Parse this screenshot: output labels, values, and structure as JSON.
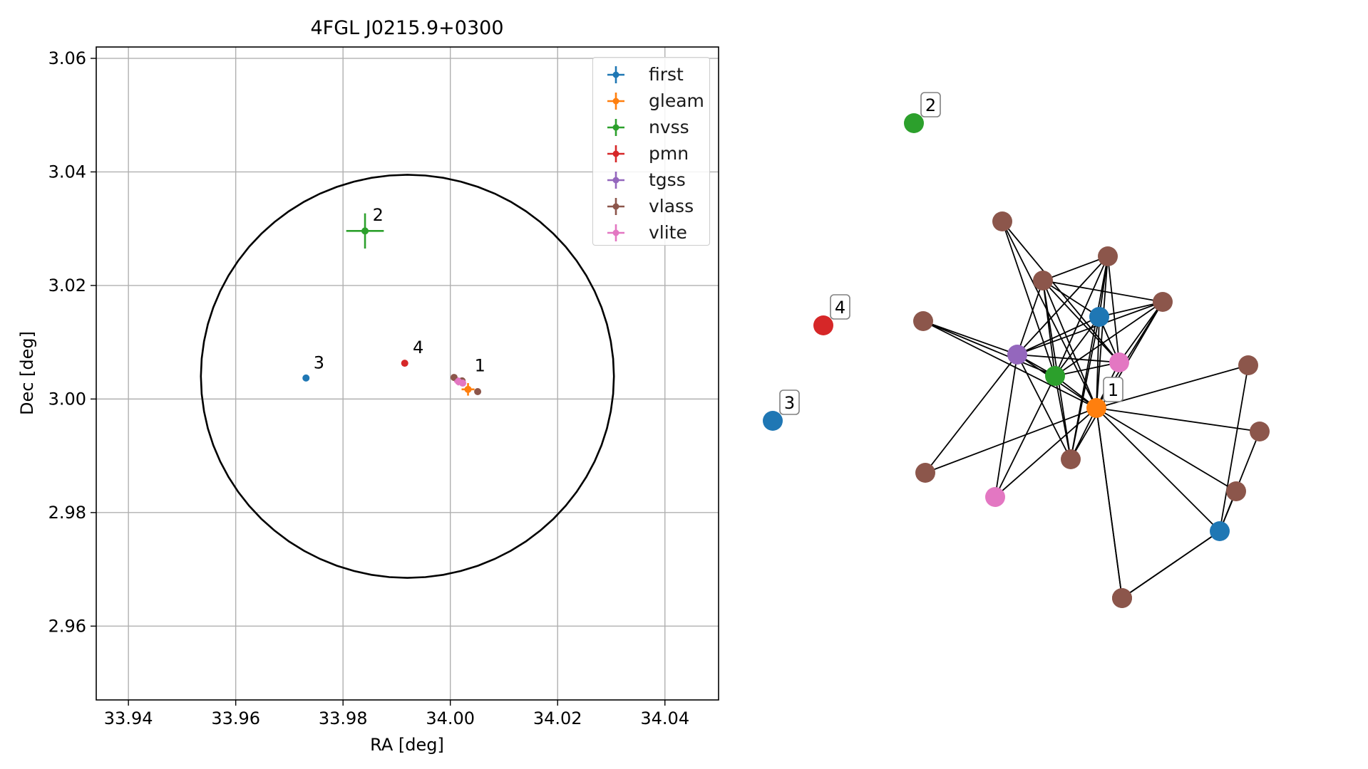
{
  "chart_data": [
    {
      "type": "scatter",
      "title": "4FGL J0215.9+0300",
      "xlabel": "RA [deg]",
      "ylabel": "Dec [deg]",
      "xlim": [
        33.934,
        34.05
      ],
      "ylim": [
        2.947,
        3.062
      ],
      "xticks": [
        "33.94",
        "33.96",
        "33.98",
        "34.00",
        "34.02",
        "34.04"
      ],
      "xtick_values": [
        33.94,
        33.96,
        33.98,
        34.0,
        34.02,
        34.04
      ],
      "yticks": [
        "2.96",
        "2.98",
        "3.00",
        "3.02",
        "3.04",
        "3.06"
      ],
      "ytick_values": [
        2.96,
        2.98,
        3.0,
        3.02,
        3.04,
        3.06
      ],
      "grid": true,
      "legend_position": "top-right",
      "circle": {
        "center": [
          33.992,
          3.004
        ],
        "radius_ra": 0.0385,
        "radius_dec": 0.0355
      },
      "series": [
        {
          "name": "first",
          "color": "#1f77b4",
          "points": [
            {
              "x": 33.9731,
              "y": 3.0037,
              "xerr": 0,
              "yerr": 0
            }
          ]
        },
        {
          "name": "gleam",
          "color": "#ff7f0e",
          "points": [
            {
              "x": 34.0033,
              "y": 3.0017,
              "xerr": 0.0012,
              "yerr": 0.0011
            }
          ]
        },
        {
          "name": "nvss",
          "color": "#2ca02c",
          "points": [
            {
              "x": 33.9841,
              "y": 3.0296,
              "xerr": 0.0035,
              "yerr": 0.0031
            }
          ]
        },
        {
          "name": "pmn",
          "color": "#d62728",
          "points": [
            {
              "x": 33.9915,
              "y": 3.0063,
              "xerr": 0,
              "yerr": 0
            }
          ]
        },
        {
          "name": "tgss",
          "color": "#9467bd",
          "points": [
            {
              "x": 34.0019,
              "y": 3.0031,
              "xerr": 0,
              "yerr": 0
            }
          ]
        },
        {
          "name": "vlass",
          "color": "#8c564b",
          "points": [
            {
              "x": 34.0007,
              "y": 3.0038,
              "xerr": 0,
              "yerr": 0
            },
            {
              "x": 34.0022,
              "y": 3.0032,
              "xerr": 0,
              "yerr": 0
            },
            {
              "x": 34.0051,
              "y": 3.0013,
              "xerr": 0,
              "yerr": 0
            }
          ]
        },
        {
          "name": "vlite",
          "color": "#e377c2",
          "points": [
            {
              "x": 34.0015,
              "y": 3.0031,
              "xerr": 0.0008,
              "yerr": 0.0007
            },
            {
              "x": 34.0023,
              "y": 3.0028,
              "xerr": 0,
              "yerr": 0
            }
          ]
        }
      ],
      "annotations": [
        {
          "text": "1",
          "x": 34.0045,
          "y": 3.0049
        },
        {
          "text": "2",
          "x": 33.9855,
          "y": 3.0314
        },
        {
          "text": "3",
          "x": 33.9745,
          "y": 3.0054
        },
        {
          "text": "4",
          "x": 33.993,
          "y": 3.0081
        }
      ]
    },
    {
      "type": "network",
      "nodes": [
        {
          "id": "n1",
          "color": "#ff7f0e",
          "label": "1"
        },
        {
          "id": "n2",
          "color": "#2ca02c",
          "label": "2"
        },
        {
          "id": "n3",
          "color": "#1f77b4",
          "label": "3"
        },
        {
          "id": "n4",
          "color": "#d62728",
          "label": "4"
        },
        {
          "id": "g",
          "color": "#2ca02c",
          "label": ""
        },
        {
          "id": "p",
          "color": "#9467bd",
          "label": ""
        },
        {
          "id": "b1",
          "color": "#1f77b4",
          "label": ""
        },
        {
          "id": "b2",
          "color": "#1f77b4",
          "label": ""
        },
        {
          "id": "pk1",
          "color": "#e377c2",
          "label": ""
        },
        {
          "id": "pk2",
          "color": "#e377c2",
          "label": ""
        },
        {
          "id": "r1",
          "color": "#8c564b",
          "label": ""
        },
        {
          "id": "r2",
          "color": "#8c564b",
          "label": ""
        },
        {
          "id": "r3",
          "color": "#8c564b",
          "label": ""
        },
        {
          "id": "r4",
          "color": "#8c564b",
          "label": ""
        },
        {
          "id": "r5",
          "color": "#8c564b",
          "label": ""
        },
        {
          "id": "r6",
          "color": "#8c564b",
          "label": ""
        },
        {
          "id": "r7",
          "color": "#8c564b",
          "label": ""
        },
        {
          "id": "r8",
          "color": "#8c564b",
          "label": ""
        },
        {
          "id": "r9",
          "color": "#8c564b",
          "label": ""
        },
        {
          "id": "r10",
          "color": "#8c564b",
          "label": ""
        },
        {
          "id": "r11",
          "color": "#8c564b",
          "label": ""
        },
        {
          "id": "r12",
          "color": "#8c564b",
          "label": ""
        }
      ],
      "edges": [
        [
          "r1",
          "pk1"
        ],
        [
          "r1",
          "n1"
        ],
        [
          "r1",
          "g"
        ],
        [
          "r2",
          "p"
        ],
        [
          "r2",
          "g"
        ],
        [
          "r2",
          "n1"
        ],
        [
          "r2",
          "pk1"
        ],
        [
          "r2",
          "b1"
        ],
        [
          "r2",
          "r6"
        ],
        [
          "r2",
          "r3"
        ],
        [
          "r2",
          "r4"
        ],
        [
          "r3",
          "p"
        ],
        [
          "r3",
          "g"
        ],
        [
          "r3",
          "n1"
        ],
        [
          "r3",
          "pk1"
        ],
        [
          "r3",
          "b1"
        ],
        [
          "r3",
          "r6"
        ],
        [
          "r4",
          "p"
        ],
        [
          "r4",
          "g"
        ],
        [
          "r4",
          "b1"
        ],
        [
          "r4",
          "n1"
        ],
        [
          "r4",
          "pk1"
        ],
        [
          "r4",
          "r6"
        ],
        [
          "r5",
          "p"
        ],
        [
          "r5",
          "g"
        ],
        [
          "r5",
          "n1"
        ],
        [
          "b1",
          "p"
        ],
        [
          "b1",
          "g"
        ],
        [
          "b1",
          "n1"
        ],
        [
          "b1",
          "pk1"
        ],
        [
          "b1",
          "r6"
        ],
        [
          "pk1",
          "p"
        ],
        [
          "pk1",
          "g"
        ],
        [
          "pk1",
          "n1"
        ],
        [
          "p",
          "g"
        ],
        [
          "p",
          "n1"
        ],
        [
          "p",
          "r6"
        ],
        [
          "p",
          "r7"
        ],
        [
          "p",
          "pk2"
        ],
        [
          "g",
          "n1"
        ],
        [
          "g",
          "r6"
        ],
        [
          "g",
          "pk2"
        ],
        [
          "n1",
          "r6"
        ],
        [
          "n1",
          "r7"
        ],
        [
          "n1",
          "pk2"
        ],
        [
          "n1",
          "r8"
        ],
        [
          "n1",
          "r9"
        ],
        [
          "n1",
          "b2"
        ],
        [
          "n1",
          "r10"
        ],
        [
          "n1",
          "r11"
        ],
        [
          "r8",
          "b2"
        ],
        [
          "r9",
          "b2"
        ],
        [
          "r10",
          "b2"
        ],
        [
          "r11",
          "b2"
        ],
        [
          "b2",
          "r12"
        ],
        [
          "r12",
          "n1"
        ]
      ]
    }
  ]
}
